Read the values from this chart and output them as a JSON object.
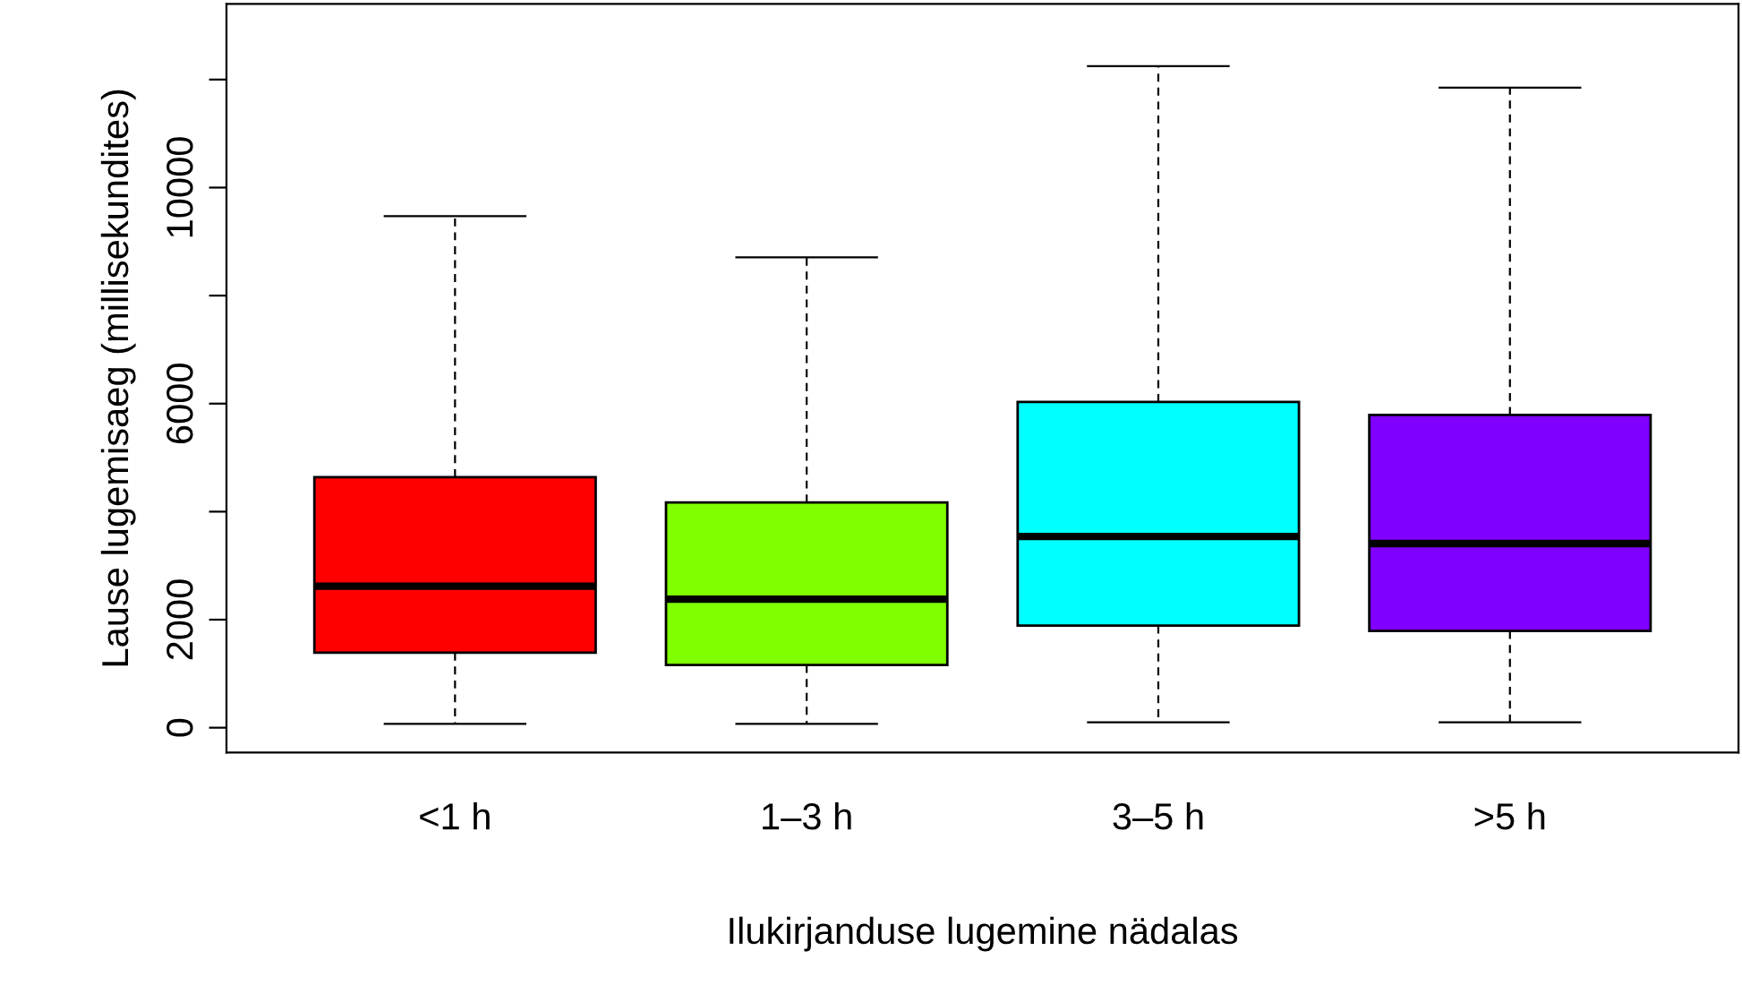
{
  "chart_data": {
    "type": "box",
    "xlabel": "Ilukirjanduse lugemine nädalas",
    "ylabel": "Lause lugemisaeg (millisekundites)",
    "categories": [
      "<1 h",
      "1–3 h",
      "3–5 h",
      ">5 h"
    ],
    "colors": [
      "#ff0000",
      "#80ff00",
      "#00ffff",
      "#8000ff"
    ],
    "boxes": [
      {
        "low": 70,
        "q1": 1390,
        "median": 2620,
        "q3": 4640,
        "high": 9470
      },
      {
        "low": 70,
        "q1": 1160,
        "median": 2380,
        "q3": 4170,
        "high": 8710
      },
      {
        "low": 100,
        "q1": 1890,
        "median": 3540,
        "q3": 6030,
        "high": 12250
      },
      {
        "low": 100,
        "q1": 1790,
        "median": 3410,
        "q3": 5790,
        "high": 11850
      }
    ],
    "ylim": [
      -460,
      13400
    ],
    "yticks": [
      0,
      2000,
      {
        "value": 4000,
        "label": null
      },
      6000,
      {
        "value": 8000,
        "label": null
      },
      10000,
      {
        "value": 12000,
        "label": null
      }
    ],
    "grid": false
  }
}
